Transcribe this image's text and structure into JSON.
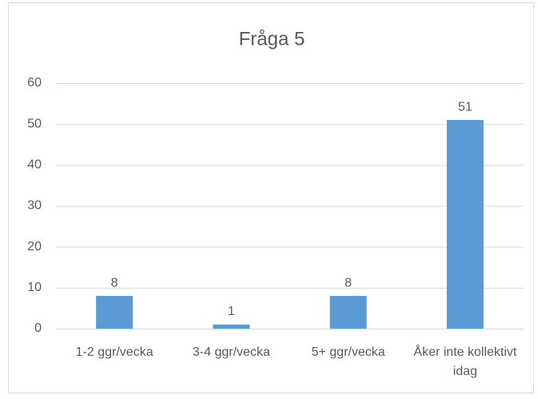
{
  "chart_data": {
    "type": "bar",
    "title": "Fråga 5",
    "categories": [
      "1-2 ggr/vecka",
      "3-4 ggr/vecka",
      "5+ ggr/vecka",
      "Åker inte kollektivt idag"
    ],
    "values": [
      8,
      1,
      8,
      51
    ],
    "color": "#5b9bd5",
    "ylim": [
      0,
      60
    ],
    "yticks": [
      0,
      10,
      20,
      30,
      40,
      50,
      60
    ],
    "grid": true,
    "data_labels": true
  }
}
